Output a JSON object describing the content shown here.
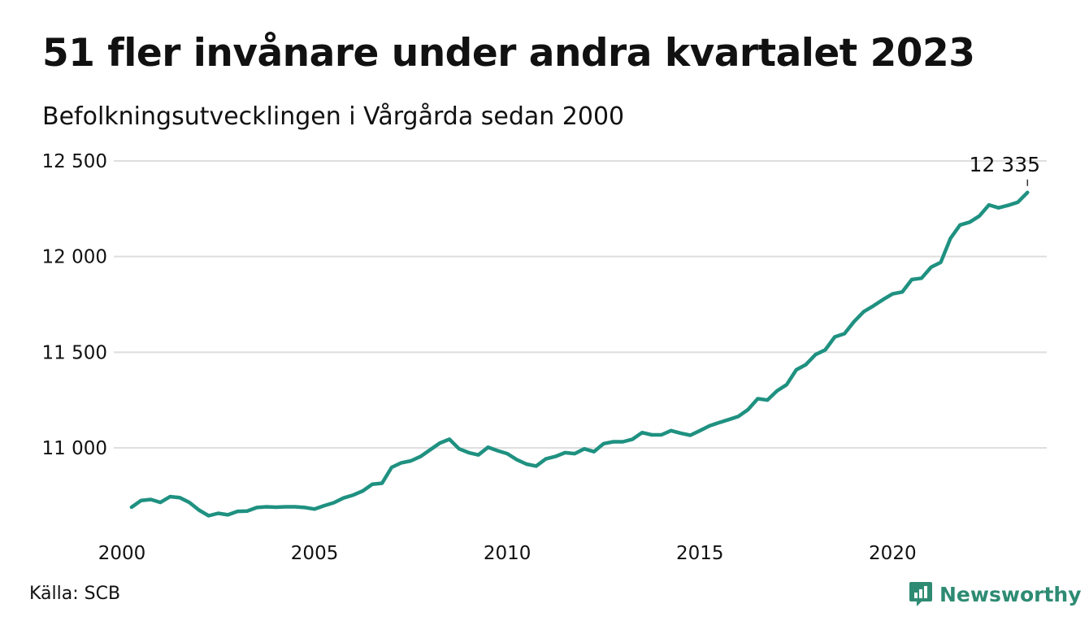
{
  "title": "51 fler invånare under andra kvartalet 2023",
  "subtitle": "Befolkningsutvecklingen i Vårgårda sedan 2000",
  "source": "Källa: SCB",
  "brand": {
    "name": "Newsworthy",
    "icon": "newsworthy-logo-icon",
    "color": "#2e8b73"
  },
  "chart_data": {
    "type": "line",
    "line_color": "#1f9181",
    "grid": true,
    "xlim": [
      2000,
      2024
    ],
    "ylim": [
      10600,
      12550
    ],
    "x_ticks": [
      2000,
      2005,
      2010,
      2015,
      2020
    ],
    "x_tick_labels": [
      "2000",
      "2005",
      "2010",
      "2015",
      "2020"
    ],
    "y_ticks": [
      11000,
      11500,
      12000,
      12500
    ],
    "y_tick_labels": [
      "11 000",
      "11 500",
      "12 000",
      "12 500"
    ],
    "end_label": "12 335",
    "series": [
      {
        "x": [
          2000.25,
          2000.5,
          2000.75,
          2001.0,
          2001.25,
          2001.5,
          2001.75,
          2002.0,
          2002.25,
          2002.5,
          2002.75,
          2003.0,
          2003.25,
          2003.5,
          2003.75,
          2004.0,
          2004.25,
          2004.5,
          2004.75,
          2005.0,
          2005.25,
          2005.5,
          2005.75,
          2006.0,
          2006.25,
          2006.5,
          2006.75,
          2007.0,
          2007.25,
          2007.5,
          2007.75,
          2008.0,
          2008.25,
          2008.5,
          2008.75,
          2009.0,
          2009.25,
          2009.5,
          2009.75,
          2010.0,
          2010.25,
          2010.5,
          2010.75,
          2011.0,
          2011.25,
          2011.5,
          2011.75,
          2012.0,
          2012.25,
          2012.5,
          2012.75,
          2013.0,
          2013.25,
          2013.5,
          2013.75,
          2014.0,
          2014.25,
          2014.5,
          2014.75,
          2015.0,
          2015.25,
          2015.5,
          2015.75,
          2016.0,
          2016.25,
          2016.5,
          2016.75,
          2017.0,
          2017.25,
          2017.5,
          2017.75,
          2018.0,
          2018.25,
          2018.5,
          2018.75,
          2019.0,
          2019.25,
          2019.5,
          2019.75,
          2020.0,
          2020.25,
          2020.5,
          2020.75,
          2021.0,
          2021.25,
          2021.5,
          2021.75,
          2022.0,
          2022.25,
          2022.5,
          2022.75,
          2023.0,
          2023.25,
          2023.5
        ],
        "values": [
          10690,
          10725,
          10730,
          10715,
          10745,
          10740,
          10715,
          10675,
          10645,
          10658,
          10650,
          10668,
          10670,
          10688,
          10692,
          10690,
          10692,
          10692,
          10688,
          10680,
          10698,
          10713,
          10738,
          10753,
          10775,
          10810,
          10815,
          10898,
          10922,
          10932,
          10955,
          10990,
          11025,
          11045,
          10995,
          10975,
          10963,
          11003,
          10985,
          10970,
          10938,
          10915,
          10905,
          10942,
          10955,
          10975,
          10970,
          10995,
          10980,
          11022,
          11032,
          11032,
          11045,
          11080,
          11068,
          11068,
          11090,
          11077,
          11066,
          11090,
          11115,
          11132,
          11148,
          11165,
          11200,
          11257,
          11250,
          11298,
          11330,
          11408,
          11435,
          11488,
          11512,
          11580,
          11597,
          11660,
          11712,
          11742,
          11775,
          11805,
          11815,
          11880,
          11887,
          11945,
          11970,
          12095,
          12165,
          12180,
          12212,
          12270,
          12255,
          12268,
          12284,
          12335
        ]
      }
    ]
  }
}
